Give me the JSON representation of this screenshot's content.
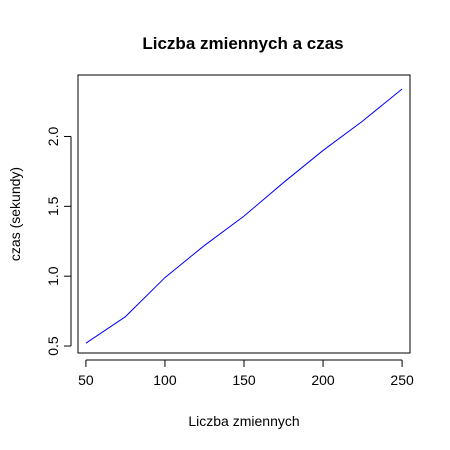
{
  "chart_data": {
    "type": "line",
    "title": "Liczba zmiennych a czas",
    "xlabel": "Liczba zmiennych",
    "ylabel": "czas (sekundy)",
    "xlim": [
      45,
      255
    ],
    "ylim": [
      0.45,
      2.44
    ],
    "x_ticks": [
      50,
      100,
      150,
      200,
      250
    ],
    "y_ticks": [
      0.5,
      1.0,
      1.5,
      2.0
    ],
    "y_tick_labels": [
      "0.5",
      "1.0",
      "1.5",
      "2.0"
    ],
    "grid": false,
    "series": [
      {
        "color": "#0000ff",
        "x": [
          50,
          75,
          100,
          125,
          150,
          175,
          200,
          225,
          250
        ],
        "y": [
          0.52,
          0.71,
          0.99,
          1.22,
          1.43,
          1.67,
          1.9,
          2.11,
          2.34
        ]
      }
    ]
  }
}
